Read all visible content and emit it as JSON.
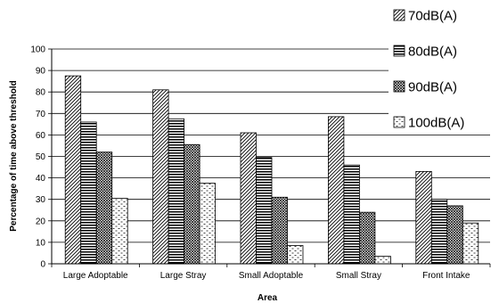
{
  "chart_data": {
    "type": "bar",
    "title": "",
    "xlabel": "Area",
    "ylabel": "Percentage of time above threshold",
    "ylim": [
      0,
      100
    ],
    "yticks": [
      0,
      10,
      20,
      30,
      40,
      50,
      60,
      70,
      80,
      90,
      100
    ],
    "grid": true,
    "legend_position": "top-right",
    "categories": [
      "Large Adoptable",
      "Large Stray",
      "Small Adoptable",
      "Small Stray",
      "Front Intake"
    ],
    "series": [
      {
        "name": "70dB(A)",
        "pattern": "diagonal-hatch",
        "values": [
          87.5,
          81,
          61,
          68.5,
          43
        ]
      },
      {
        "name": "80dB(A)",
        "pattern": "horizontal-stripes",
        "values": [
          66,
          67.5,
          49.5,
          46,
          30
        ]
      },
      {
        "name": "90dB(A)",
        "pattern": "dense-crosshatch",
        "values": [
          52,
          55.5,
          31,
          24,
          27
        ]
      },
      {
        "name": "100dB(A)",
        "pattern": "sparse-dashes",
        "values": [
          30.5,
          37.5,
          8.5,
          3.5,
          19
        ]
      }
    ],
    "colors": {
      "stroke": "#000000",
      "grid": "#000000",
      "background": "#ffffff"
    }
  }
}
